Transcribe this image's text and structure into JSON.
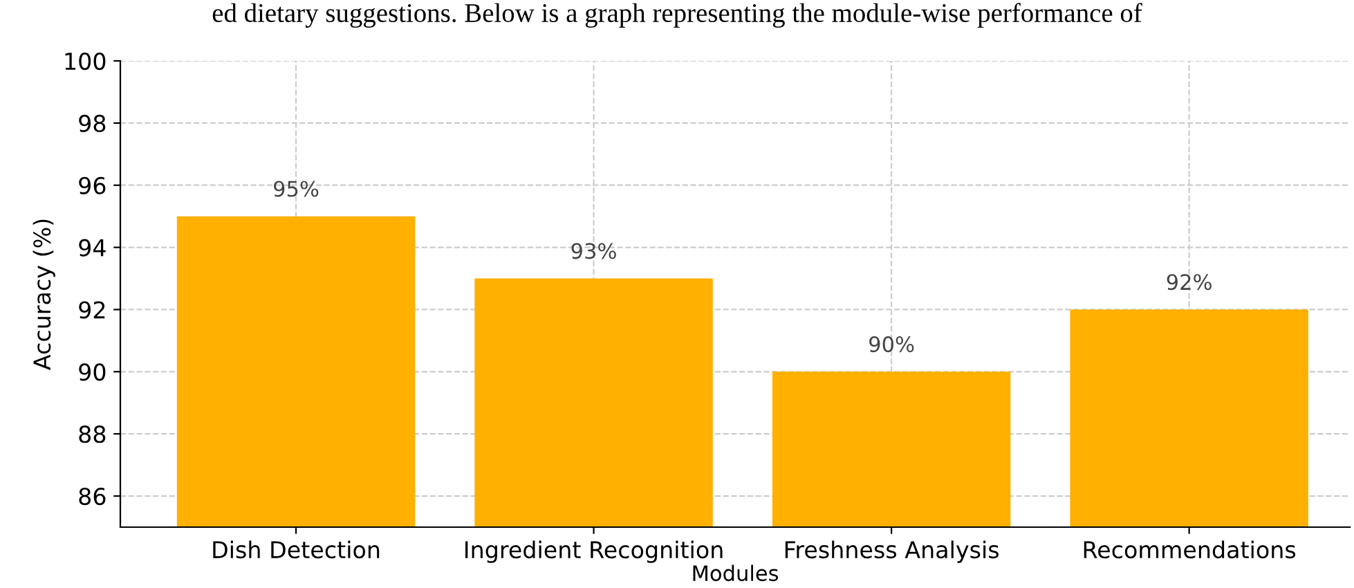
{
  "chart_data": {
    "type": "bar",
    "annotations": [
      "ed dietary suggestions. Below is a graph representing the module-wise performance of"
    ],
    "xlabel": "Modules",
    "ylabel": "Accuracy (%)",
    "categories": [
      "Dish Detection",
      "Ingredient Recognition",
      "Freshness Analysis",
      "Recommendations"
    ],
    "values": [
      95,
      93,
      90,
      92
    ],
    "value_labels": [
      "95%",
      "93%",
      "90%",
      "92%"
    ],
    "color": "#ffb000",
    "ylim": [
      85,
      100
    ],
    "yticks": [
      86,
      88,
      90,
      92,
      94,
      96,
      98,
      100
    ],
    "grid": true
  }
}
